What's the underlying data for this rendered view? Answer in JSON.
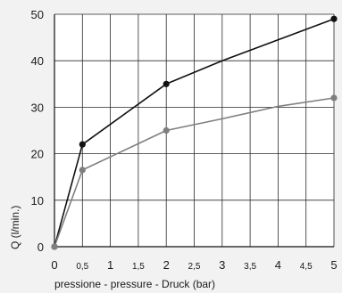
{
  "chart_data": {
    "type": "line",
    "xlabel": "pressione - pressure - Druck (bar)",
    "ylabel": "Q (l/min.)",
    "xlim": [
      0,
      5
    ],
    "ylim": [
      0,
      50
    ],
    "x_ticks": [
      {
        "value": 0,
        "label": "0",
        "size": "large"
      },
      {
        "value": 0.5,
        "label": "0,5",
        "size": "small"
      },
      {
        "value": 1,
        "label": "1",
        "size": "large"
      },
      {
        "value": 1.5,
        "label": "1,5",
        "size": "small"
      },
      {
        "value": 2,
        "label": "2",
        "size": "large"
      },
      {
        "value": 2.5,
        "label": "2,5",
        "size": "small"
      },
      {
        "value": 3,
        "label": "3",
        "size": "large"
      },
      {
        "value": 3.5,
        "label": "3,5",
        "size": "small"
      },
      {
        "value": 4,
        "label": "4",
        "size": "large"
      },
      {
        "value": 4.5,
        "label": "4,5",
        "size": "small"
      },
      {
        "value": 5,
        "label": "5",
        "size": "large"
      }
    ],
    "y_ticks": [
      0,
      10,
      20,
      30,
      40,
      50
    ],
    "grid": true,
    "series": [
      {
        "color": "#111111",
        "points": [
          [
            0,
            0
          ],
          [
            0.5,
            22
          ],
          [
            2,
            35
          ],
          [
            3,
            40
          ],
          [
            5,
            49
          ]
        ],
        "markers": [
          [
            0,
            0
          ],
          [
            0.5,
            22
          ],
          [
            2,
            35
          ],
          [
            5,
            49
          ]
        ]
      },
      {
        "color": "#7f7f7f",
        "points": [
          [
            0,
            0
          ],
          [
            0.5,
            16.5
          ],
          [
            2,
            25
          ],
          [
            3,
            27.5
          ],
          [
            4,
            30.2
          ],
          [
            5,
            32
          ]
        ],
        "markers": [
          [
            0,
            0
          ],
          [
            0.5,
            16.5
          ],
          [
            2,
            25
          ],
          [
            5,
            32
          ]
        ]
      }
    ]
  }
}
